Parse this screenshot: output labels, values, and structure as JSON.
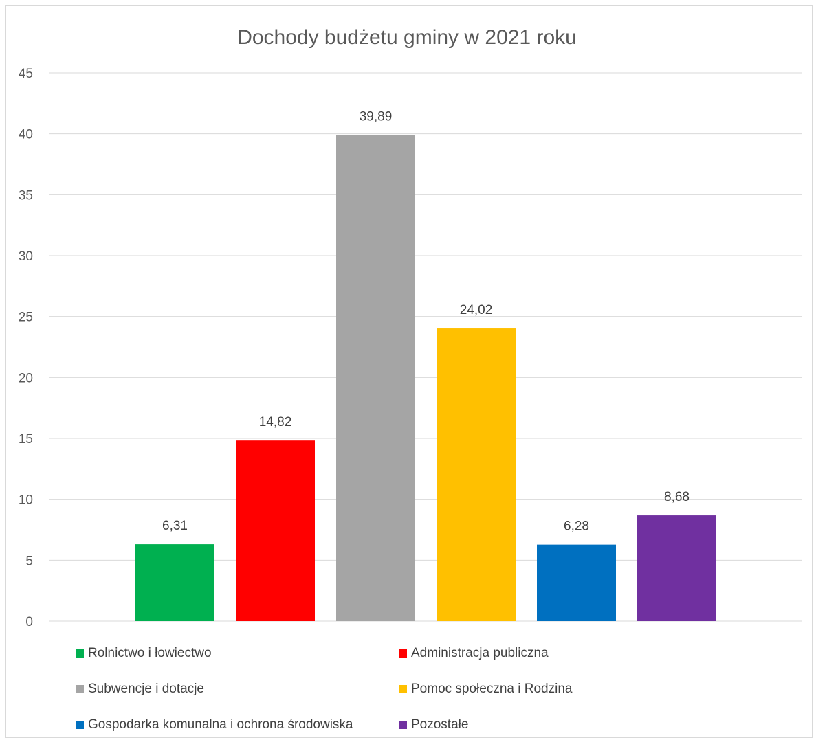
{
  "chart_data": {
    "type": "bar",
    "title": "Dochody budżetu gminy w 2021 roku",
    "xlabel": "",
    "ylabel": "",
    "ylim": [
      0,
      45
    ],
    "yticks": [
      0,
      5,
      10,
      15,
      20,
      25,
      30,
      35,
      40,
      45
    ],
    "grid": true,
    "legend_position": "bottom",
    "series": [
      {
        "name": "Rolnictwo i łowiectwo",
        "value": 6.31,
        "label": "6,31",
        "color": "#00b050"
      },
      {
        "name": "Administracja publiczna",
        "value": 14.82,
        "label": "14,82",
        "color": "#ff0000"
      },
      {
        "name": "Subwencje i dotacje",
        "value": 39.89,
        "label": "39,89",
        "color": "#a5a5a5"
      },
      {
        "name": "Pomoc społeczna i Rodzina",
        "value": 24.02,
        "label": "24,02",
        "color": "#ffc000"
      },
      {
        "name": "Gospodarka komunalna i ochrona środowiska",
        "value": 6.28,
        "label": "6,28",
        "color": "#0070c0"
      },
      {
        "name": "Pozostałe",
        "value": 8.68,
        "label": "8,68",
        "color": "#7030a0"
      }
    ]
  }
}
